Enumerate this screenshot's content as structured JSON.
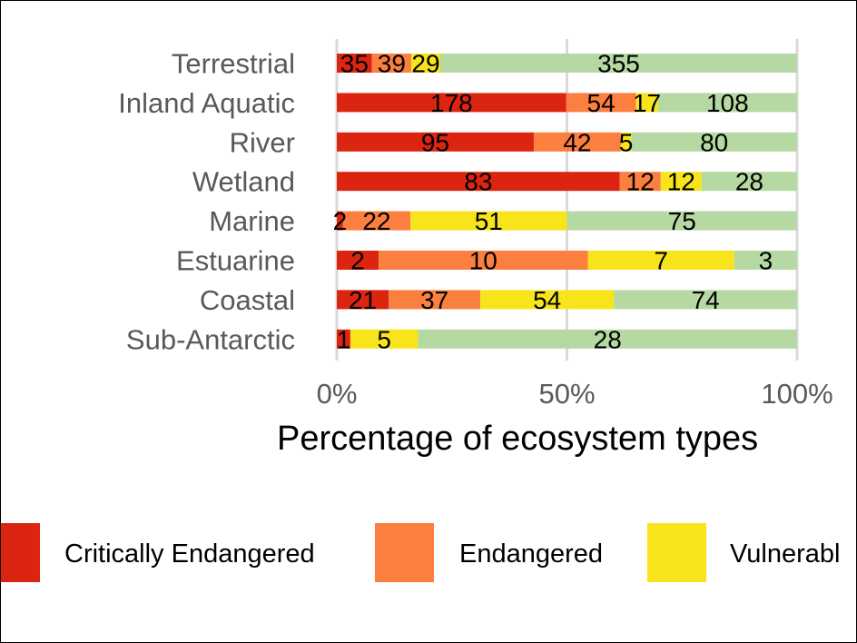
{
  "chart_data": {
    "type": "bar",
    "orientation": "horizontal",
    "stacking": "percent",
    "categories": [
      "Terrestrial",
      "Inland Aquatic",
      "River",
      "Wetland",
      "Marine",
      "Estuarine",
      "Coastal",
      "Sub-Antarctic"
    ],
    "series": [
      {
        "name": "Critically Endangered",
        "color": "#dc2510",
        "values": [
          35,
          178,
          95,
          83,
          2,
          2,
          21,
          1
        ]
      },
      {
        "name": "Endangered",
        "color": "#fb7f3f",
        "values": [
          39,
          54,
          42,
          12,
          22,
          10,
          37,
          0
        ]
      },
      {
        "name": "Vulnerable",
        "color": "#f7e41a",
        "values": [
          29,
          17,
          5,
          12,
          51,
          7,
          54,
          5
        ]
      },
      {
        "name": "",
        "color": "#b6d8a2",
        "values": [
          355,
          108,
          80,
          28,
          75,
          3,
          74,
          28
        ]
      }
    ],
    "xlabel": "Percentage of ecosystem types",
    "ylabel": "",
    "xlim": [
      0,
      100
    ],
    "x_ticks": [
      "0%",
      "50%",
      "100%"
    ],
    "grid": "vertical",
    "legend": "bottom",
    "legend_entries": [
      "Critically Endangered",
      "Endangered",
      "Vulnerabl"
    ],
    "data_labels": [
      [
        "35",
        "39",
        "29",
        "355"
      ],
      [
        "178",
        "54",
        "17",
        "108"
      ],
      [
        "95",
        "42",
        "5",
        "80"
      ],
      [
        "83",
        "12",
        "12",
        "28"
      ],
      [
        "2",
        "22",
        "51",
        "75"
      ],
      [
        "2",
        "10",
        "7",
        "3"
      ],
      [
        "21",
        "37",
        "54",
        "74"
      ],
      [
        "1",
        "",
        "5",
        "28"
      ]
    ]
  }
}
